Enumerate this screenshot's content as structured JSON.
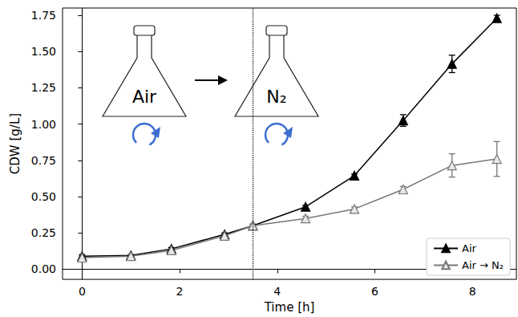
{
  "chart_data": {
    "type": "line",
    "xlabel": "Time [h]",
    "ylabel": "CDW [g/L]",
    "xlim": [
      -0.4,
      8.9
    ],
    "xticks": [
      0,
      2,
      4,
      6,
      8
    ],
    "ylim": [
      -0.07,
      1.8
    ],
    "yticks": [
      {
        "value": 0,
        "label": "0.00"
      },
      {
        "value": 0.25,
        "label": "0.25"
      },
      {
        "value": 0.5,
        "label": "0.50"
      },
      {
        "value": 0.75,
        "label": "0.75"
      },
      {
        "value": 1,
        "label": "1.00"
      },
      {
        "value": 1.25,
        "label": "1.25"
      },
      {
        "value": 1.5,
        "label": "1.50"
      },
      {
        "value": 1.75,
        "label": "1.75"
      }
    ],
    "grid": false,
    "legend": "lower right",
    "annotations": [
      "Air",
      "N₂"
    ],
    "vlines": [
      3.5
    ],
    "x": [
      0,
      1,
      1.83,
      2.92,
      3.5,
      4.58,
      5.58,
      6.58,
      7.58,
      8.5
    ],
    "series": [
      {
        "name": "Air",
        "color": "#000000",
        "marker": "triangle",
        "values": [
          0.09,
          0.095,
          0.14,
          0.24,
          0.3,
          0.43,
          0.645,
          1.025,
          1.415,
          1.73
        ],
        "errors": [
          0.01,
          0.005,
          0.01,
          0.01,
          0.01,
          0.01,
          0.01,
          0.04,
          0.06,
          0.02
        ]
      },
      {
        "name": "Air → N₂",
        "color": "#777777",
        "marker": "triangle-open",
        "values": [
          0.08,
          0.09,
          0.13,
          0.23,
          0.3,
          0.35,
          0.415,
          0.55,
          0.715,
          0.76
        ],
        "errors": [
          0.01,
          0.005,
          0.01,
          0.01,
          0.01,
          0.015,
          0.015,
          0.02,
          0.08,
          0.12
        ]
      }
    ]
  }
}
